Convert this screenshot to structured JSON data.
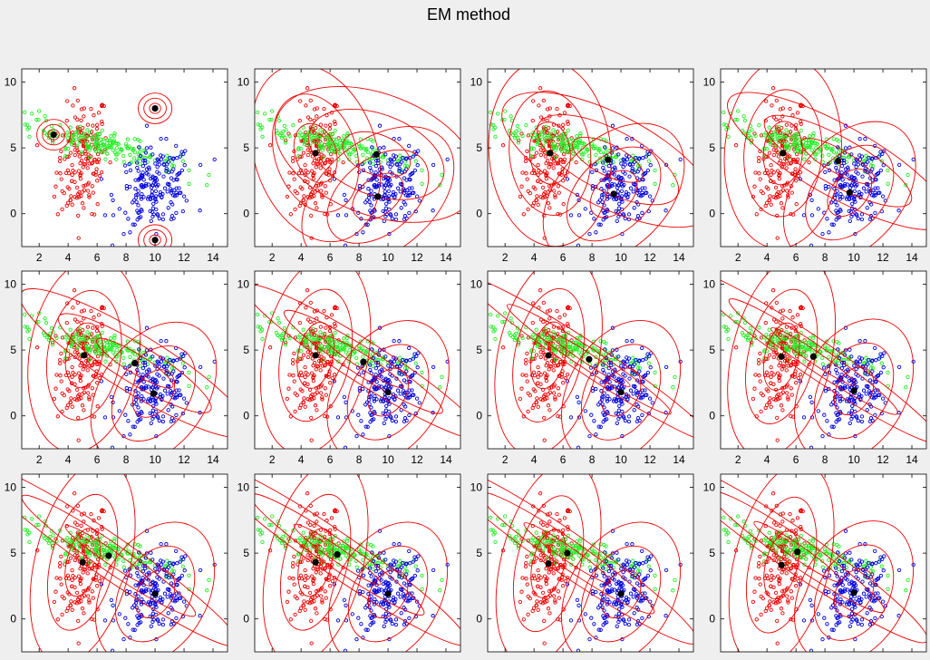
{
  "figure": {
    "title": "EM method",
    "background": "#efefef",
    "axes_background": "#ffffff",
    "colors": {
      "cluster_red": "#ee0000",
      "cluster_green": "#22ee22",
      "cluster_blue": "#0000dd",
      "contour": "#ee0000",
      "center": "#000000"
    }
  },
  "chart_data": [
    {
      "type": "scatter",
      "iteration": 1,
      "xlim": [
        0.8,
        15
      ],
      "ylim": [
        -2.5,
        11
      ],
      "xticks": [
        2,
        4,
        6,
        8,
        10,
        12,
        14
      ],
      "yticks": [
        0,
        5,
        10
      ],
      "show_xticks": true,
      "grid": false,
      "legend": "none",
      "series": [
        {
          "center": [
            3,
            6
          ],
          "cov": [
            [
              0.15,
              0
            ],
            [
              0,
              0.15
            ]
          ]
        },
        {
          "center": [
            10,
            8
          ],
          "cov": [
            [
              0.15,
              0
            ],
            [
              0,
              0.15
            ]
          ]
        },
        {
          "center": [
            10,
            -2
          ],
          "cov": [
            [
              0.15,
              0
            ],
            [
              0,
              0.15
            ]
          ]
        }
      ]
    },
    {
      "type": "scatter",
      "iteration": 2,
      "xlim": [
        0.8,
        15
      ],
      "ylim": [
        -2.5,
        11
      ],
      "xticks": [
        2,
        4,
        6,
        8,
        10,
        12,
        14
      ],
      "yticks": [
        0,
        5,
        10
      ],
      "show_xticks": true,
      "grid": false,
      "legend": "none",
      "series": [
        {
          "center": [
            5,
            4.6
          ],
          "cov": [
            [
              2.6,
              -0.6
            ],
            [
              -0.6,
              4.2
            ]
          ]
        },
        {
          "center": [
            9.2,
            4.5
          ],
          "cov": [
            [
              5.5,
              -1.2
            ],
            [
              -1.2,
              2.8
            ]
          ]
        },
        {
          "center": [
            9.3,
            1.3
          ],
          "cov": [
            [
              3.2,
              1.0
            ],
            [
              1.0,
              2.8
            ]
          ]
        }
      ]
    },
    {
      "type": "scatter",
      "iteration": 3,
      "xlim": [
        0.8,
        15
      ],
      "ylim": [
        -2.5,
        11
      ],
      "xticks": [
        2,
        4,
        6,
        8,
        10,
        12,
        14
      ],
      "yticks": [
        0,
        5,
        10
      ],
      "show_xticks": true,
      "grid": false,
      "legend": "none",
      "series": [
        {
          "center": [
            5.1,
            4.6
          ],
          "cov": [
            [
              2.4,
              -0.2
            ],
            [
              -0.2,
              4.6
            ]
          ]
        },
        {
          "center": [
            9.1,
            4.1
          ],
          "cov": [
            [
              6,
              -2.4
            ],
            [
              -2.4,
              2.6
            ]
          ]
        },
        {
          "center": [
            9.5,
            1.5
          ],
          "cov": [
            [
              2.8,
              0.9
            ],
            [
              0.9,
              2.8
            ]
          ]
        }
      ]
    },
    {
      "type": "scatter",
      "iteration": 4,
      "xlim": [
        0.8,
        15
      ],
      "ylim": [
        -2.5,
        11
      ],
      "xticks": [
        2,
        4,
        6,
        8,
        10,
        12,
        14
      ],
      "yticks": [
        0,
        5,
        10
      ],
      "show_xticks": true,
      "grid": false,
      "legend": "none",
      "series": [
        {
          "center": [
            5.1,
            4.6
          ],
          "cov": [
            [
              2.2,
              0.2
            ],
            [
              0.2,
              4.8
            ]
          ]
        },
        {
          "center": [
            8.9,
            4.0
          ],
          "cov": [
            [
              6.5,
              -3.2
            ],
            [
              -3.2,
              2.6
            ]
          ]
        },
        {
          "center": [
            9.7,
            1.6
          ],
          "cov": [
            [
              2.5,
              0.8
            ],
            [
              0.8,
              2.8
            ]
          ]
        }
      ]
    },
    {
      "type": "scatter",
      "iteration": 5,
      "xlim": [
        0.8,
        15
      ],
      "ylim": [
        -2.5,
        11
      ],
      "xticks": [
        2,
        4,
        6,
        8,
        10,
        12,
        14
      ],
      "yticks": [
        0,
        5,
        10
      ],
      "show_xticks": true,
      "grid": false,
      "legend": "none",
      "series": [
        {
          "center": [
            5.1,
            4.6
          ],
          "cov": [
            [
              2.0,
              0.5
            ],
            [
              0.5,
              5.0
            ]
          ]
        },
        {
          "center": [
            8.6,
            4.0
          ],
          "cov": [
            [
              7,
              -4
            ],
            [
              -4,
              3
            ]
          ]
        },
        {
          "center": [
            9.9,
            1.7
          ],
          "cov": [
            [
              2.3,
              0.7
            ],
            [
              0.7,
              2.8
            ]
          ]
        }
      ]
    },
    {
      "type": "scatter",
      "iteration": 6,
      "xlim": [
        0.8,
        15
      ],
      "ylim": [
        -2.5,
        11
      ],
      "xticks": [
        2,
        4,
        6,
        8,
        10,
        12,
        14
      ],
      "yticks": [
        0,
        5,
        10
      ],
      "show_xticks": true,
      "grid": false,
      "legend": "none",
      "series": [
        {
          "center": [
            5.0,
            4.6
          ],
          "cov": [
            [
              1.9,
              0.7
            ],
            [
              0.7,
              5.2
            ]
          ]
        },
        {
          "center": [
            8.3,
            4.1
          ],
          "cov": [
            [
              7.5,
              -4.6
            ],
            [
              -4.6,
              3.2
            ]
          ]
        },
        {
          "center": [
            10,
            1.8
          ],
          "cov": [
            [
              2.2,
              0.6
            ],
            [
              0.6,
              2.8
            ]
          ]
        }
      ]
    },
    {
      "type": "scatter",
      "iteration": 7,
      "xlim": [
        0.8,
        15
      ],
      "ylim": [
        -2.5,
        11
      ],
      "xticks": [
        2,
        4,
        6,
        8,
        10,
        12,
        14
      ],
      "yticks": [
        0,
        5,
        10
      ],
      "show_xticks": true,
      "grid": false,
      "legend": "none",
      "series": [
        {
          "center": [
            5.0,
            4.6
          ],
          "cov": [
            [
              1.8,
              0.8
            ],
            [
              0.8,
              5.3
            ]
          ]
        },
        {
          "center": [
            7.8,
            4.3
          ],
          "cov": [
            [
              8,
              -5.2
            ],
            [
              -5.2,
              3.6
            ]
          ]
        },
        {
          "center": [
            10,
            1.8
          ],
          "cov": [
            [
              2.1,
              0.6
            ],
            [
              0.6,
              2.8
            ]
          ]
        }
      ]
    },
    {
      "type": "scatter",
      "iteration": 8,
      "xlim": [
        0.8,
        15
      ],
      "ylim": [
        -2.5,
        11
      ],
      "xticks": [
        2,
        4,
        6,
        8,
        10,
        12,
        14
      ],
      "yticks": [
        0,
        5,
        10
      ],
      "show_xticks": true,
      "grid": false,
      "legend": "none",
      "series": [
        {
          "center": [
            5.0,
            4.5
          ],
          "cov": [
            [
              1.8,
              0.9
            ],
            [
              0.9,
              5.4
            ]
          ]
        },
        {
          "center": [
            7.2,
            4.5
          ],
          "cov": [
            [
              8.5,
              -5.6
            ],
            [
              -5.6,
              4.0
            ]
          ]
        },
        {
          "center": [
            10,
            1.9
          ],
          "cov": [
            [
              2.1,
              0.6
            ],
            [
              0.6,
              2.8
            ]
          ]
        }
      ]
    },
    {
      "type": "scatter",
      "iteration": 9,
      "xlim": [
        0.8,
        15
      ],
      "ylim": [
        -2.5,
        11
      ],
      "xticks": [
        2,
        4,
        6,
        8,
        10,
        12,
        14
      ],
      "yticks": [
        0,
        5,
        10
      ],
      "show_xticks": false,
      "grid": false,
      "legend": "none",
      "series": [
        {
          "center": [
            5.0,
            4.3
          ],
          "cov": [
            [
              1.7,
              1.0
            ],
            [
              1.0,
              5.5
            ]
          ]
        },
        {
          "center": [
            6.8,
            4.8
          ],
          "cov": [
            [
              9,
              -6
            ],
            [
              -6,
              4.4
            ]
          ]
        },
        {
          "center": [
            10,
            1.9
          ],
          "cov": [
            [
              2.1,
              0.6
            ],
            [
              0.6,
              2.8
            ]
          ]
        }
      ]
    },
    {
      "type": "scatter",
      "iteration": 10,
      "xlim": [
        0.8,
        15
      ],
      "ylim": [
        -2.5,
        11
      ],
      "xticks": [
        2,
        4,
        6,
        8,
        10,
        12,
        14
      ],
      "yticks": [
        0,
        5,
        10
      ],
      "show_xticks": false,
      "grid": false,
      "legend": "none",
      "series": [
        {
          "center": [
            5.0,
            4.3
          ],
          "cov": [
            [
              1.7,
              1.0
            ],
            [
              1.0,
              5.5
            ]
          ]
        },
        {
          "center": [
            6.5,
            4.9
          ],
          "cov": [
            [
              9,
              -6
            ],
            [
              -6,
              4.4
            ]
          ]
        },
        {
          "center": [
            10,
            1.9
          ],
          "cov": [
            [
              2.1,
              0.6
            ],
            [
              0.6,
              2.8
            ]
          ]
        }
      ]
    },
    {
      "type": "scatter",
      "iteration": 11,
      "xlim": [
        0.8,
        15
      ],
      "ylim": [
        -2.5,
        11
      ],
      "xticks": [
        2,
        4,
        6,
        8,
        10,
        12,
        14
      ],
      "yticks": [
        0,
        5,
        10
      ],
      "show_xticks": false,
      "grid": false,
      "legend": "none",
      "series": [
        {
          "center": [
            5.0,
            4.2
          ],
          "cov": [
            [
              1.7,
              1.0
            ],
            [
              1.0,
              5.5
            ]
          ]
        },
        {
          "center": [
            6.3,
            5.0
          ],
          "cov": [
            [
              9,
              -6
            ],
            [
              -6,
              4.4
            ]
          ]
        },
        {
          "center": [
            10,
            1.9
          ],
          "cov": [
            [
              2.1,
              0.6
            ],
            [
              0.6,
              2.8
            ]
          ]
        }
      ]
    },
    {
      "type": "scatter",
      "iteration": 12,
      "xlim": [
        0.8,
        15
      ],
      "ylim": [
        -2.5,
        11
      ],
      "xticks": [
        2,
        4,
        6,
        8,
        10,
        12,
        14
      ],
      "yticks": [
        0,
        5,
        10
      ],
      "show_xticks": false,
      "grid": false,
      "legend": "none",
      "series": [
        {
          "center": [
            5.0,
            4.1
          ],
          "cov": [
            [
              1.7,
              1.0
            ],
            [
              1.0,
              5.5
            ]
          ]
        },
        {
          "center": [
            6.1,
            5.1
          ],
          "cov": [
            [
              9,
              -6
            ],
            [
              -6,
              4.4
            ]
          ]
        },
        {
          "center": [
            10,
            2.0
          ],
          "cov": [
            [
              2.1,
              0.6
            ],
            [
              0.6,
              2.8
            ]
          ]
        }
      ]
    }
  ]
}
